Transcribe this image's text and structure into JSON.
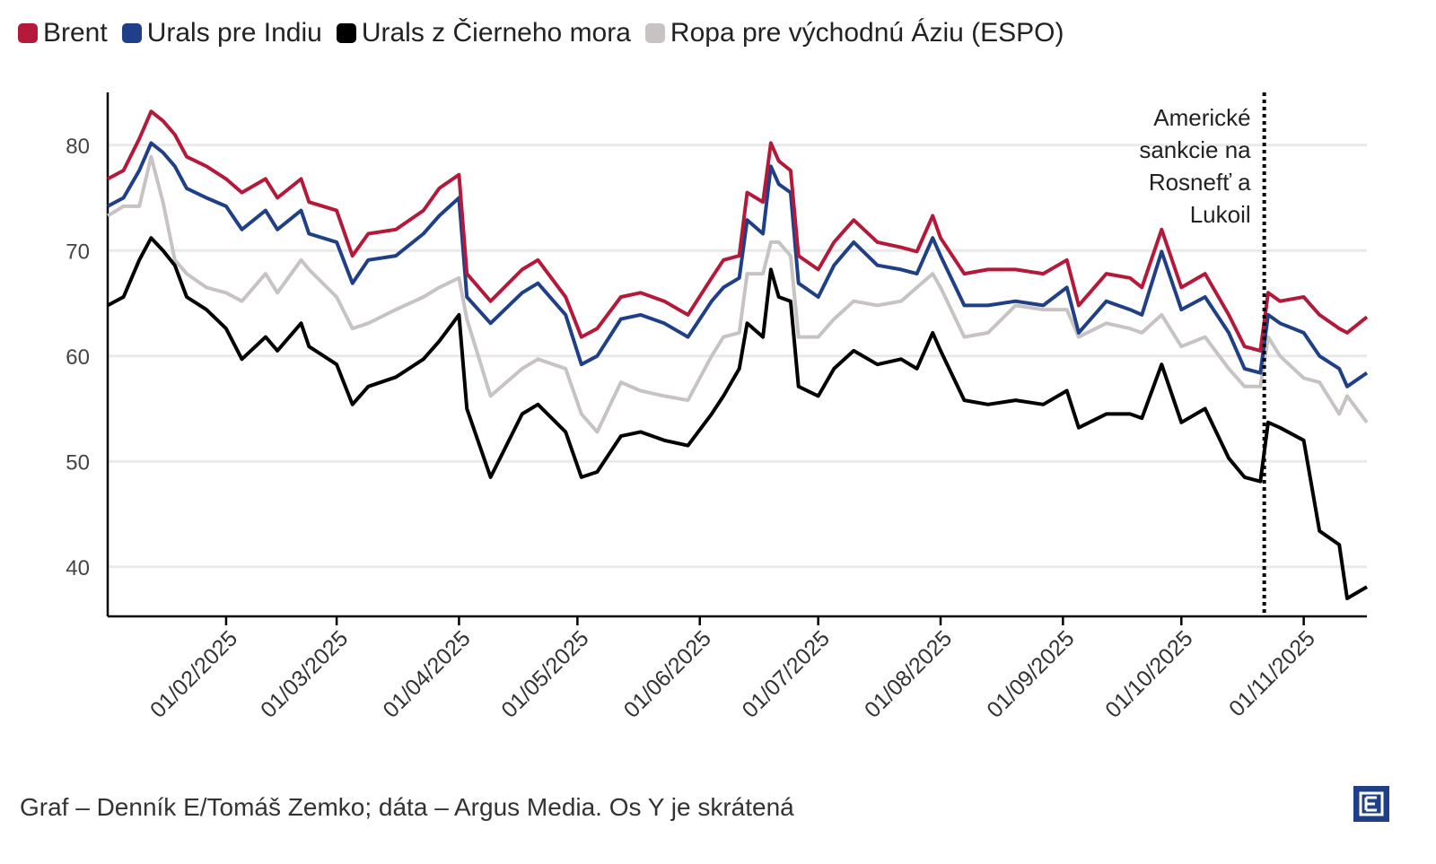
{
  "chart_data": {
    "type": "line",
    "title": "",
    "xlabel": "",
    "ylabel": "",
    "ylim": [
      35.3,
      85
    ],
    "xlim": [
      "2025-01-02",
      "2025-11-17"
    ],
    "grid": "horizontal",
    "legend_placement": "top-left",
    "y_ticks": [
      40,
      50,
      60,
      70,
      80
    ],
    "x_ticks": [
      {
        "date": "2025-02-01",
        "label": "01/02/2025"
      },
      {
        "date": "2025-03-01",
        "label": "01/03/2025"
      },
      {
        "date": "2025-04-01",
        "label": "01/04/2025"
      },
      {
        "date": "2025-05-01",
        "label": "01/05/2025"
      },
      {
        "date": "2025-06-01",
        "label": "01/06/2025"
      },
      {
        "date": "2025-07-01",
        "label": "01/07/2025"
      },
      {
        "date": "2025-08-01",
        "label": "01/08/2025"
      },
      {
        "date": "2025-09-01",
        "label": "01/09/2025"
      },
      {
        "date": "2025-10-01",
        "label": "01/10/2025"
      },
      {
        "date": "2025-11-01",
        "label": "01/11/2025"
      }
    ],
    "x": [
      "2025-01-02",
      "2025-01-06",
      "2025-01-10",
      "2025-01-13",
      "2025-01-16",
      "2025-01-19",
      "2025-01-22",
      "2025-01-27",
      "2025-02-01",
      "2025-02-05",
      "2025-02-11",
      "2025-02-14",
      "2025-02-20",
      "2025-02-22",
      "2025-03-01",
      "2025-03-05",
      "2025-03-09",
      "2025-03-16",
      "2025-03-23",
      "2025-03-27",
      "2025-04-01",
      "2025-04-03",
      "2025-04-09",
      "2025-04-17",
      "2025-04-21",
      "2025-04-28",
      "2025-05-02",
      "2025-05-06",
      "2025-05-12",
      "2025-05-17",
      "2025-05-23",
      "2025-05-29",
      "2025-06-04",
      "2025-06-07",
      "2025-06-11",
      "2025-06-13",
      "2025-06-17",
      "2025-06-19",
      "2025-06-21",
      "2025-06-24",
      "2025-06-26",
      "2025-07-01",
      "2025-07-05",
      "2025-07-10",
      "2025-07-16",
      "2025-07-22",
      "2025-07-26",
      "2025-07-30",
      "2025-08-01",
      "2025-08-07",
      "2025-08-13",
      "2025-08-20",
      "2025-08-27",
      "2025-09-02",
      "2025-09-05",
      "2025-09-12",
      "2025-09-18",
      "2025-09-21",
      "2025-09-26",
      "2025-10-01",
      "2025-10-07",
      "2025-10-13",
      "2025-10-17",
      "2025-10-21",
      "2025-10-23",
      "2025-10-26",
      "2025-11-01",
      "2025-11-05",
      "2025-11-10",
      "2025-11-12",
      "2025-11-17"
    ],
    "series": [
      {
        "name": "Brent",
        "color": "#b5193a",
        "values": [
          76.8,
          77.6,
          80.6,
          83.2,
          82.3,
          81.0,
          78.9,
          78.0,
          76.8,
          75.5,
          76.8,
          75.0,
          76.8,
          74.6,
          73.8,
          69.5,
          71.6,
          72.0,
          73.8,
          75.9,
          77.2,
          67.8,
          65.2,
          68.2,
          69.1,
          65.6,
          61.8,
          62.6,
          65.6,
          66.0,
          65.2,
          63.9,
          67.4,
          69.1,
          69.5,
          75.5,
          74.6,
          80.2,
          78.5,
          77.6,
          69.5,
          68.2,
          70.8,
          72.9,
          70.8,
          70.3,
          69.9,
          73.3,
          71.2,
          67.8,
          68.2,
          68.2,
          67.8,
          69.1,
          64.8,
          67.8,
          67.4,
          66.5,
          72.0,
          66.5,
          67.8,
          63.9,
          60.9,
          60.5,
          66.0,
          65.2,
          65.6,
          63.9,
          62.6,
          62.2,
          63.7
        ]
      },
      {
        "name": "Urals pre Indiu",
        "color": "#1f3f86",
        "values": [
          74.2,
          75.0,
          77.6,
          80.2,
          79.3,
          78.0,
          75.9,
          75.0,
          74.2,
          72.0,
          73.8,
          72.0,
          73.8,
          71.6,
          70.8,
          66.9,
          69.1,
          69.5,
          71.6,
          73.3,
          75.0,
          65.6,
          63.1,
          66.0,
          66.9,
          63.9,
          59.2,
          60.0,
          63.5,
          63.9,
          63.1,
          61.8,
          65.2,
          66.5,
          67.4,
          72.9,
          71.6,
          78.0,
          76.3,
          75.5,
          66.9,
          65.6,
          68.6,
          70.8,
          68.6,
          68.2,
          67.8,
          71.2,
          69.5,
          64.8,
          64.8,
          65.2,
          64.8,
          66.5,
          62.2,
          65.2,
          64.4,
          63.9,
          69.9,
          64.4,
          65.6,
          62.2,
          58.8,
          58.4,
          63.9,
          63.1,
          62.2,
          60.0,
          58.8,
          57.1,
          58.4
        ]
      },
      {
        "name": "Urals z Čierneho mora",
        "color": "#000000",
        "values": [
          64.8,
          65.6,
          69.1,
          71.2,
          70.0,
          68.6,
          65.6,
          64.4,
          62.6,
          59.7,
          61.8,
          60.5,
          63.1,
          60.9,
          59.2,
          55.4,
          57.1,
          58.0,
          59.7,
          61.4,
          63.9,
          55.0,
          48.5,
          54.5,
          55.4,
          52.8,
          48.5,
          49.0,
          52.4,
          52.8,
          52.0,
          51.5,
          54.5,
          56.2,
          58.8,
          63.1,
          61.8,
          68.2,
          65.6,
          65.2,
          57.1,
          56.2,
          58.8,
          60.5,
          59.2,
          59.7,
          58.8,
          62.2,
          60.5,
          55.8,
          55.4,
          55.8,
          55.4,
          56.7,
          53.2,
          54.5,
          54.5,
          54.1,
          59.2,
          53.7,
          55.0,
          50.3,
          48.5,
          48.1,
          53.7,
          53.2,
          52.0,
          43.4,
          42.1,
          37.0,
          38.1
        ]
      },
      {
        "name": "Ropa pre východnú Áziu (ESPO)",
        "color": "#c8c3c3",
        "values": [
          73.3,
          74.2,
          74.2,
          78.9,
          74.6,
          69.1,
          67.8,
          66.5,
          66.0,
          65.2,
          67.8,
          66.0,
          69.1,
          68.2,
          65.6,
          62.6,
          63.1,
          64.4,
          65.6,
          66.5,
          67.4,
          63.5,
          56.2,
          58.8,
          59.7,
          58.8,
          54.5,
          52.8,
          57.5,
          56.7,
          56.2,
          55.8,
          60.0,
          61.8,
          62.2,
          67.8,
          67.8,
          70.8,
          70.8,
          69.5,
          61.8,
          61.8,
          63.5,
          65.2,
          64.8,
          65.2,
          66.5,
          67.8,
          66.5,
          61.8,
          62.2,
          64.8,
          64.4,
          64.4,
          61.8,
          63.1,
          62.6,
          62.2,
          63.9,
          60.9,
          61.8,
          58.8,
          57.1,
          57.1,
          61.8,
          60.0,
          57.9,
          57.5,
          54.5,
          56.2,
          53.7
        ]
      }
    ],
    "annotation": {
      "date": "2025-10-22",
      "lines": [
        "Americké",
        "sankcie na",
        "Rosnefť a",
        "Lukoil"
      ]
    }
  },
  "footer": {
    "source": "Graf – Denník E/Tomáš Zemko; dáta – Argus Media. Os Y je skrátená"
  },
  "logo": {
    "text": "E",
    "color": "#1f3f86"
  }
}
